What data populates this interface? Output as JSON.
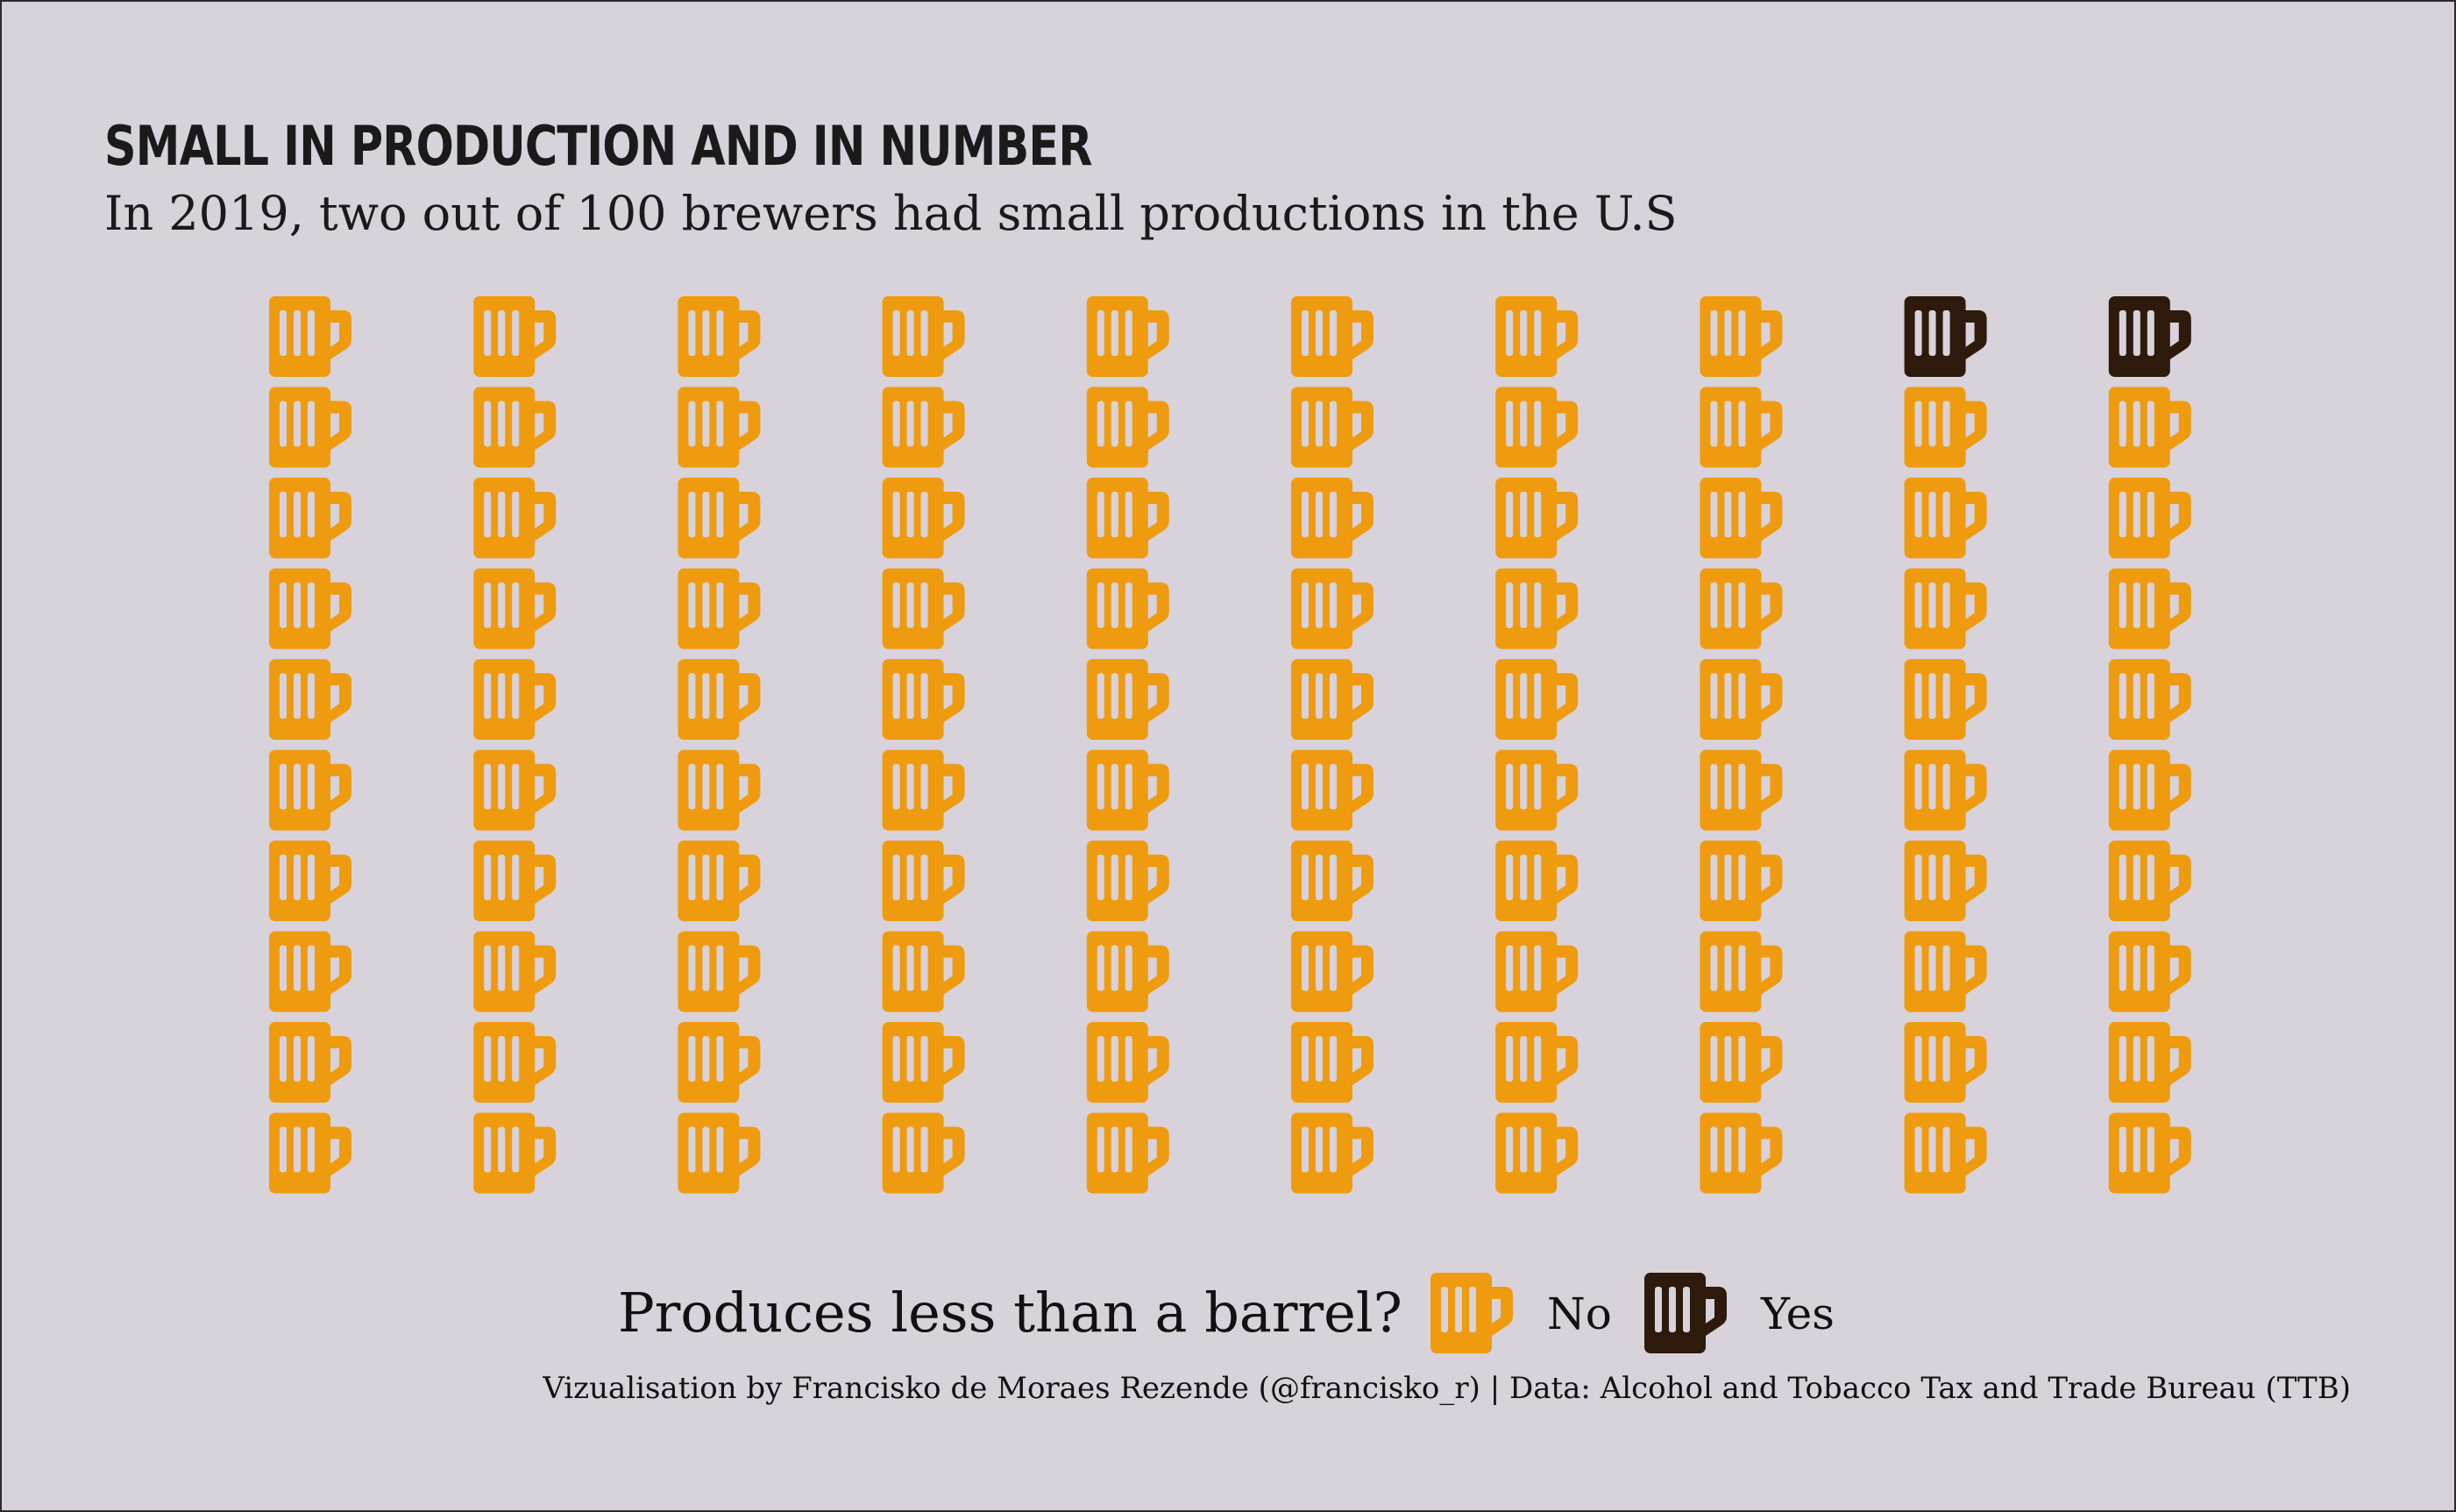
{
  "title": "SMALL IN PRODUCTION AND IN NUMBER",
  "subtitle": "In 2019, two out of 100 brewers had small productions in the U.S",
  "caption": "Vizualisation by Francisko de Moraes Rezende (@francisko_r) | Data: Alcohol and Tobacco Tax and Trade Bureau (TTB)",
  "colors": {
    "background": "#d8d2da",
    "no": "#ef9b0f",
    "yes": "#2d1a0c"
  },
  "chart_data": {
    "type": "waffle",
    "icon": "beer-mug-icon",
    "total": 100,
    "columns": 10,
    "rows": 10,
    "categories": [
      "No",
      "Yes"
    ],
    "values": [
      98,
      2
    ],
    "yes_positions": "top row, last two columns",
    "legend": {
      "title": "Produces less than a barrel?",
      "items": [
        {
          "label": "No",
          "color": "#ef9b0f"
        },
        {
          "label": "Yes",
          "color": "#2d1a0c"
        }
      ],
      "placement": "bottom"
    }
  }
}
